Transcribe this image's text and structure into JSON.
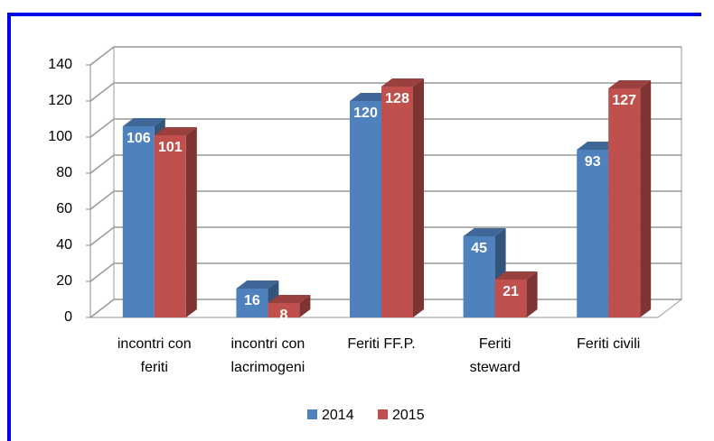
{
  "chart_data": {
    "type": "bar3d",
    "categories": [
      [
        "incontri con",
        "feriti"
      ],
      [
        "incontri con",
        "lacrimogeni"
      ],
      [
        "Feriti FF.P."
      ],
      [
        "Feriti",
        "steward"
      ],
      [
        "Feriti civili"
      ]
    ],
    "series": [
      {
        "name": "2014",
        "color": "#4f81bd",
        "values": [
          106,
          16,
          120,
          45,
          93
        ]
      },
      {
        "name": "2015",
        "color": "#c0504d",
        "values": [
          101,
          8,
          128,
          21,
          127
        ]
      }
    ],
    "ylim": [
      0,
      140
    ],
    "yticks": [
      0,
      20,
      40,
      60,
      80,
      100,
      120,
      140
    ],
    "grid": true,
    "legend": "bottom"
  }
}
